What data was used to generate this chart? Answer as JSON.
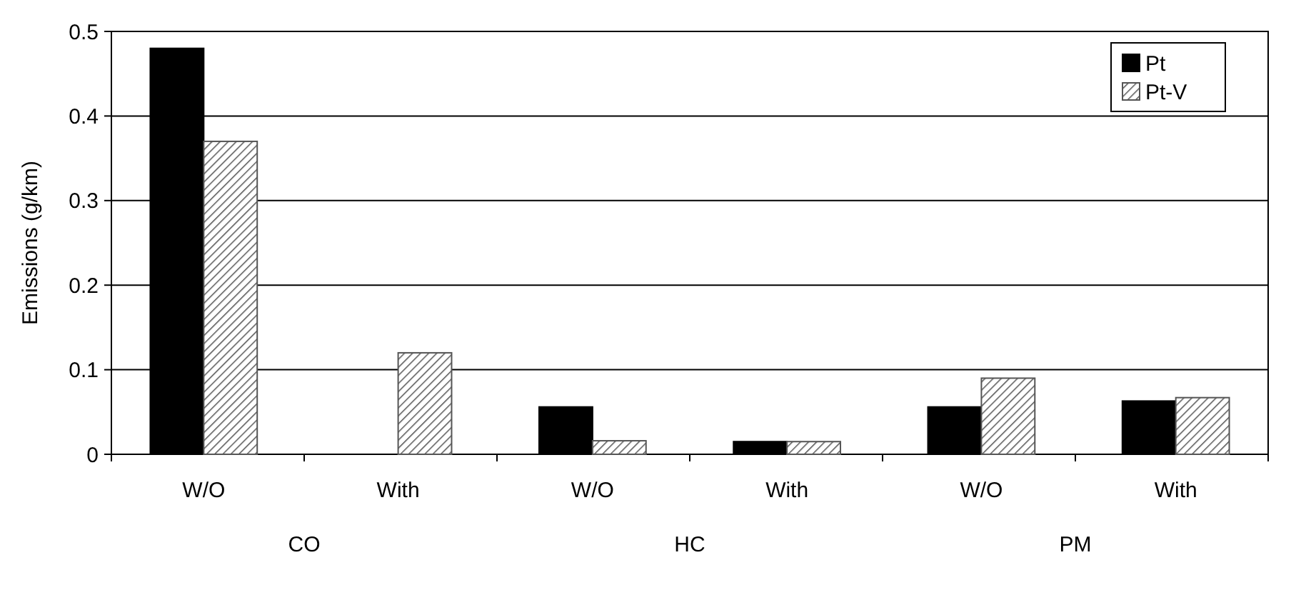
{
  "chart_data": {
    "type": "bar",
    "ylabel": "Emissions (g/km)",
    "categories": [
      "W/O",
      "With",
      "W/O",
      "With",
      "W/O",
      "With"
    ],
    "series": [
      {
        "name": "Pt",
        "color": "#000000",
        "values": [
          0.48,
          0,
          0.056,
          0.015,
          0.056,
          0.063
        ]
      },
      {
        "name": "Pt-V",
        "color": "#555555",
        "values": [
          0.37,
          0.12,
          0.016,
          0.015,
          0.09,
          0.067
        ]
      }
    ],
    "annotations": [
      "CO",
      "HC",
      "PM"
    ],
    "ylim": [
      0,
      0.5
    ],
    "yticks": [
      0,
      0.1,
      0.2,
      0.3,
      0.4,
      0.5
    ],
    "grid": "y",
    "legend": "top right"
  }
}
